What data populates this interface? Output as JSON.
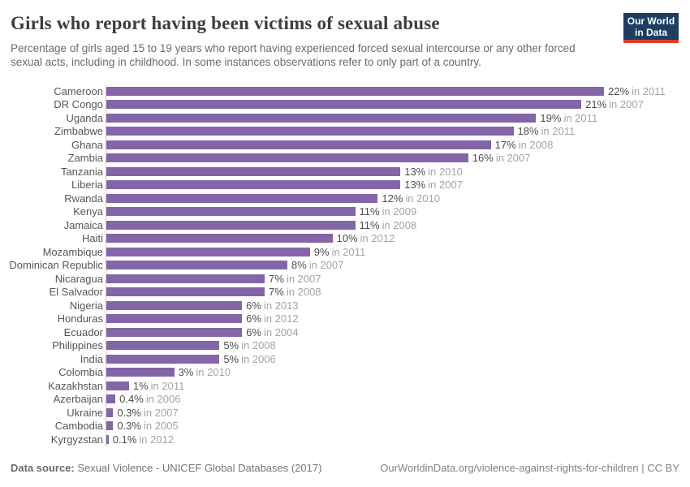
{
  "header": {
    "title": "Girls who report having been victims of sexual abuse",
    "subtitle": "Percentage of girls aged 15 to 19 years who report having experienced forced sexual intercourse or any other forced sexual acts, including in childhood. In some instances observations refer to only part of a country.",
    "logo": {
      "line1": "Our World",
      "line2": "in Data"
    }
  },
  "chart_data": {
    "type": "bar",
    "orientation": "horizontal",
    "unit": "%",
    "xlim": [
      0,
      22
    ],
    "grid": false,
    "legend": "none",
    "bar_color": "#8465a8",
    "categories": [
      "Cameroon",
      "DR Congo",
      "Uganda",
      "Zimbabwe",
      "Ghana",
      "Zambia",
      "Tanzania",
      "Liberia",
      "Rwanda",
      "Kenya",
      "Jamaica",
      "Haiti",
      "Mozambique",
      "Dominican Republic",
      "Nicaragua",
      "El Salvador",
      "Nigeria",
      "Honduras",
      "Ecuador",
      "Philippines",
      "India",
      "Colombia",
      "Kazakhstan",
      "Azerbaijan",
      "Ukraine",
      "Cambodia",
      "Kyrgyzstan"
    ],
    "rows": [
      {
        "country": "Cameroon",
        "value": 22,
        "display": "22%",
        "year_label": "in 2011"
      },
      {
        "country": "DR Congo",
        "value": 21,
        "display": "21%",
        "year_label": "in 2007"
      },
      {
        "country": "Uganda",
        "value": 19,
        "display": "19%",
        "year_label": "in 2011"
      },
      {
        "country": "Zimbabwe",
        "value": 18,
        "display": "18%",
        "year_label": "in 2011"
      },
      {
        "country": "Ghana",
        "value": 17,
        "display": "17%",
        "year_label": "in 2008"
      },
      {
        "country": "Zambia",
        "value": 16,
        "display": "16%",
        "year_label": "in 2007"
      },
      {
        "country": "Tanzania",
        "value": 13,
        "display": "13%",
        "year_label": "in 2010"
      },
      {
        "country": "Liberia",
        "value": 13,
        "display": "13%",
        "year_label": "in 2007"
      },
      {
        "country": "Rwanda",
        "value": 12,
        "display": "12%",
        "year_label": "in 2010"
      },
      {
        "country": "Kenya",
        "value": 11,
        "display": "11%",
        "year_label": "in 2009"
      },
      {
        "country": "Jamaica",
        "value": 11,
        "display": "11%",
        "year_label": "in 2008"
      },
      {
        "country": "Haiti",
        "value": 10,
        "display": "10%",
        "year_label": "in 2012"
      },
      {
        "country": "Mozambique",
        "value": 9,
        "display": "9%",
        "year_label": "in 2011"
      },
      {
        "country": "Dominican Republic",
        "value": 8,
        "display": "8%",
        "year_label": "in 2007"
      },
      {
        "country": "Nicaragua",
        "value": 7,
        "display": "7%",
        "year_label": "in 2007"
      },
      {
        "country": "El Salvador",
        "value": 7,
        "display": "7%",
        "year_label": "in 2008"
      },
      {
        "country": "Nigeria",
        "value": 6,
        "display": "6%",
        "year_label": "in 2013"
      },
      {
        "country": "Honduras",
        "value": 6,
        "display": "6%",
        "year_label": "in 2012"
      },
      {
        "country": "Ecuador",
        "value": 6,
        "display": "6%",
        "year_label": "in 2004"
      },
      {
        "country": "Philippines",
        "value": 5,
        "display": "5%",
        "year_label": "in 2008"
      },
      {
        "country": "India",
        "value": 5,
        "display": "5%",
        "year_label": "in 2006"
      },
      {
        "country": "Colombia",
        "value": 3,
        "display": "3%",
        "year_label": "in 2010"
      },
      {
        "country": "Kazakhstan",
        "value": 1,
        "display": "1%",
        "year_label": "in 2011"
      },
      {
        "country": "Azerbaijan",
        "value": 0.4,
        "display": "0.4%",
        "year_label": "in 2006"
      },
      {
        "country": "Ukraine",
        "value": 0.3,
        "display": "0.3%",
        "year_label": "in 2007"
      },
      {
        "country": "Cambodia",
        "value": 0.3,
        "display": "0.3%",
        "year_label": "in 2005"
      },
      {
        "country": "Kyrgyzstan",
        "value": 0.1,
        "display": "0.1%",
        "year_label": "in 2012"
      }
    ]
  },
  "footer": {
    "datasource_label": "Data source:",
    "datasource_value": "Sexual Violence - UNICEF Global Databases (2017)",
    "license": "OurWorldinData.org/violence-against-rights-for-children | CC BY"
  },
  "style": {
    "bar_color": "#8465a8",
    "axis_color": "#cccccc",
    "title_color": "#3d3d3d",
    "country_label_color": "#565656",
    "value_color": "#4d4d4d",
    "year_color": "#a3a3a3",
    "subtitle_color": "#6b6b6b",
    "footer_color": "#757575",
    "logo_background": "#1d3d63",
    "logo_stripe": "#dc3c2b"
  }
}
